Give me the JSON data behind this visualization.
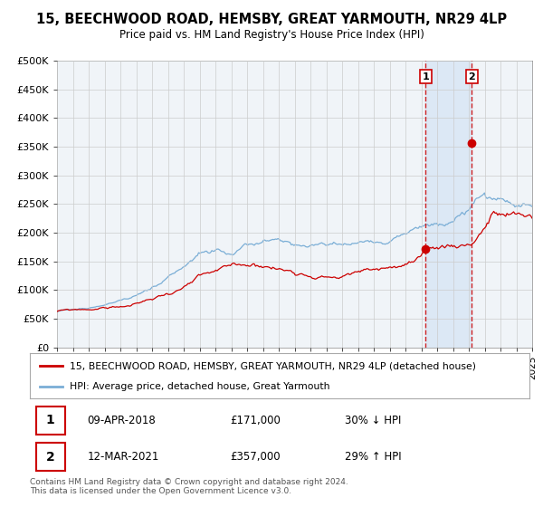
{
  "title": "15, BEECHWOOD ROAD, HEMSBY, GREAT YARMOUTH, NR29 4LP",
  "subtitle": "Price paid vs. HM Land Registry's House Price Index (HPI)",
  "sale1_date": "09-APR-2018",
  "sale1_price": 171000,
  "sale1_label": "30% ↓ HPI",
  "sale2_date": "12-MAR-2021",
  "sale2_price": 357000,
  "sale2_label": "29% ↑ HPI",
  "sale1_x": 2018.27,
  "sale2_x": 2021.19,
  "legend_label1": "15, BEECHWOOD ROAD, HEMSBY, GREAT YARMOUTH, NR29 4LP (detached house)",
  "legend_label2": "HPI: Average price, detached house, Great Yarmouth",
  "footer": "Contains HM Land Registry data © Crown copyright and database right 2024.\nThis data is licensed under the Open Government Licence v3.0.",
  "red_color": "#cc0000",
  "blue_color": "#7aaed6",
  "background_color": "#ffffff",
  "plot_bg_color": "#f0f4f8",
  "shaded_region_color": "#dce8f5",
  "grid_color": "#cccccc",
  "xmin": 1995,
  "xmax": 2025,
  "ymin": 0,
  "ymax": 500000,
  "yticks": [
    0,
    50000,
    100000,
    150000,
    200000,
    250000,
    300000,
    350000,
    400000,
    450000,
    500000
  ],
  "ytick_labels": [
    "£0",
    "£50K",
    "£100K",
    "£150K",
    "£200K",
    "£250K",
    "£300K",
    "£350K",
    "£400K",
    "£450K",
    "£500K"
  ]
}
